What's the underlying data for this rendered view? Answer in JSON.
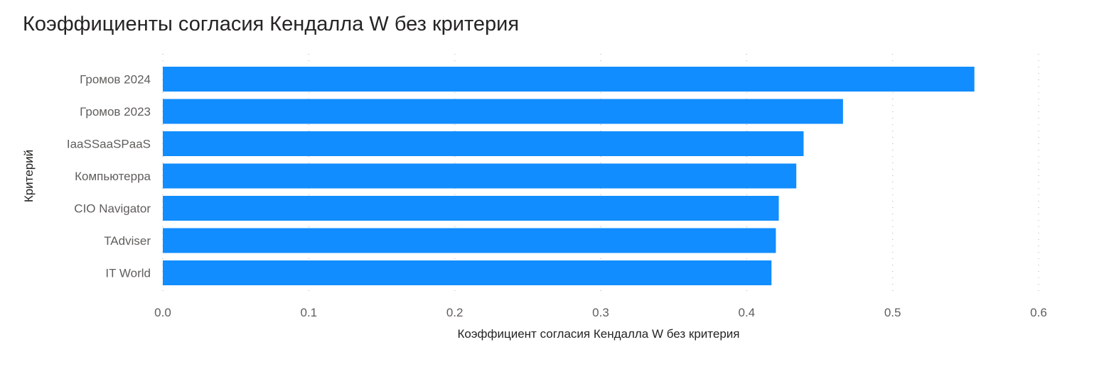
{
  "chart_data": {
    "type": "bar",
    "orientation": "horizontal",
    "title": "Коэффициенты согласия Кендалла W без критерия",
    "xlabel": "Коэффициент согласия Кендалла W без критерия",
    "ylabel": "Критерий",
    "categories": [
      "Громов 2024",
      "Громов 2023",
      "IaaSSaaSPaaS",
      "Компьютерра",
      "CIO Navigator",
      "TAdviser",
      "IT World"
    ],
    "values": [
      0.556,
      0.466,
      0.439,
      0.434,
      0.422,
      0.42,
      0.417
    ],
    "xlim": [
      0,
      0.6
    ],
    "xticks": [
      "0.0",
      "0.1",
      "0.2",
      "0.3",
      "0.4",
      "0.5",
      "0.6"
    ],
    "grid": "vertical dotted",
    "bar_color": "#118DFF"
  }
}
